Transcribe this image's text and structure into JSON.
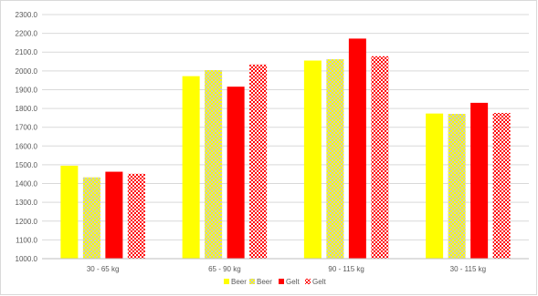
{
  "chart_data": {
    "type": "bar",
    "title": "",
    "xlabel": "",
    "ylabel": "",
    "categories": [
      "30 - 65 kg",
      "65 - 90 kg",
      "90 - 115 kg",
      "30 - 115 kg"
    ],
    "series": [
      {
        "name": "Beer",
        "pattern": "solid",
        "color": "#ffff00",
        "values": [
          1495,
          1972,
          2055,
          1773
        ]
      },
      {
        "name": "Beer",
        "pattern": "checker",
        "color": "#ffff00",
        "values": [
          1433,
          2004,
          2062,
          1771
        ]
      },
      {
        "name": "Gelt",
        "pattern": "solid",
        "color": "#ff0000",
        "values": [
          1463,
          1916,
          2172,
          1830
        ]
      },
      {
        "name": "Gelt",
        "pattern": "checker",
        "color": "#ff0000",
        "values": [
          1452,
          2034,
          2078,
          1776
        ]
      }
    ],
    "ylim": [
      1000,
      2300
    ],
    "yticks": [
      "1000.0",
      "1100.0",
      "1200.0",
      "1300.0",
      "1400.0",
      "1500.0",
      "1600.0",
      "1700.0",
      "1800.0",
      "1900.0",
      "2000.0",
      "2100.0",
      "2200.0",
      "2300.0"
    ],
    "grid": true,
    "legend_position": "bottom"
  }
}
